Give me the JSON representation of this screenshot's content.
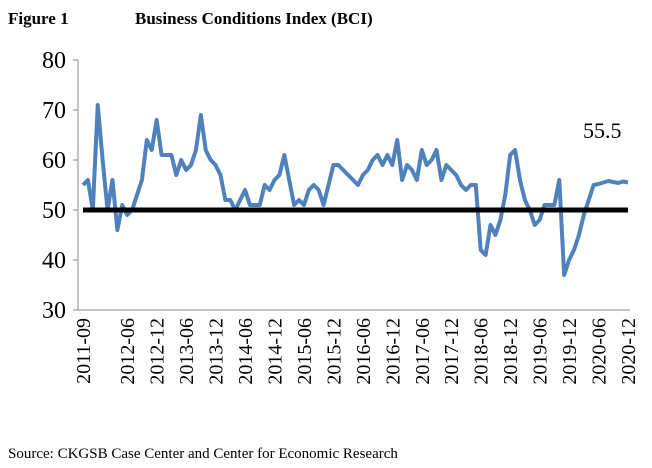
{
  "chart_data": {
    "type": "line",
    "figure_label": "Figure 1",
    "title": "Business Conditions Index (BCI)",
    "source": "Source: CKGSB Case Center and Center for Economic Research",
    "annotation": "55.5",
    "reference_line": 50,
    "categories": [
      "2011-09",
      null,
      null,
      null,
      null,
      null,
      null,
      null,
      null,
      "2012-06",
      null,
      null,
      null,
      null,
      null,
      "2012-12",
      null,
      null,
      null,
      null,
      null,
      "2013-06",
      null,
      null,
      null,
      null,
      null,
      "2013-12",
      null,
      null,
      null,
      null,
      null,
      "2014-06",
      null,
      null,
      null,
      null,
      null,
      "2014-12",
      null,
      null,
      null,
      null,
      null,
      "2015-06",
      null,
      null,
      null,
      null,
      null,
      "2015-12",
      null,
      null,
      null,
      null,
      null,
      "2016-06",
      null,
      null,
      null,
      null,
      null,
      "2016-12",
      null,
      null,
      null,
      null,
      null,
      "2017-06",
      null,
      null,
      null,
      null,
      null,
      "2017-12",
      null,
      null,
      null,
      null,
      null,
      "2018-06",
      null,
      null,
      null,
      null,
      null,
      "2018-12",
      null,
      null,
      null,
      null,
      null,
      "2019-06",
      null,
      null,
      null,
      null,
      null,
      "2019-12",
      null,
      null,
      null,
      null,
      null,
      "2020-06",
      null,
      null,
      null,
      null,
      null,
      "2020-12"
    ],
    "series": [
      {
        "name": "BCI",
        "color": "#4f81bd",
        "values": [
          55,
          56,
          50,
          71,
          60,
          50,
          56,
          46,
          51,
          49,
          50,
          53,
          56,
          64,
          62,
          68,
          61,
          61,
          61,
          57,
          60,
          58,
          59,
          62,
          69,
          62,
          60,
          59,
          57,
          52,
          52,
          50,
          52,
          54,
          51,
          51,
          51,
          55,
          54,
          56,
          57,
          61,
          56,
          51,
          52,
          51,
          54,
          55,
          54,
          51,
          55,
          59,
          59,
          58,
          57,
          56,
          55,
          57,
          58,
          60,
          61,
          59,
          61,
          59,
          64,
          56,
          59,
          58,
          56,
          62,
          59,
          60,
          62,
          56,
          59,
          58,
          57,
          55,
          54,
          55,
          55,
          42,
          41,
          47,
          45,
          48,
          53,
          61,
          62,
          56,
          52,
          50,
          47,
          48,
          51,
          51,
          51,
          56,
          37,
          40,
          42,
          45,
          49,
          52,
          55,
          55.2,
          55.5,
          55.8,
          55.6,
          55.4,
          55.7,
          55.5
        ]
      }
    ],
    "ylim": [
      30,
      80
    ],
    "yticks": [
      30,
      40,
      50,
      60,
      70,
      80
    ]
  }
}
